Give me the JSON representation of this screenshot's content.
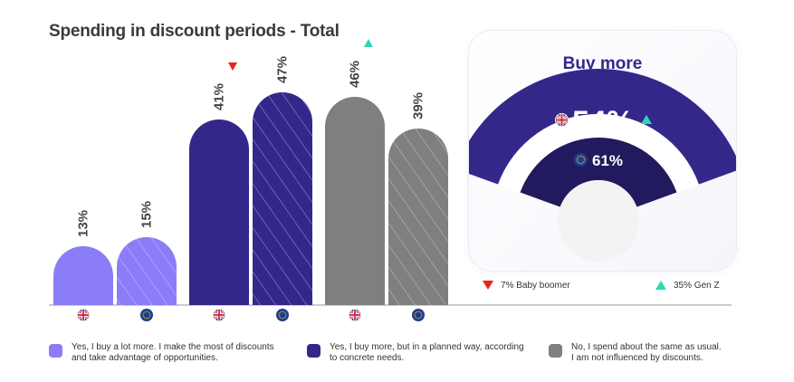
{
  "chart_data": {
    "type": "bar",
    "title": "Spending in discount periods - Total",
    "categories": [
      "Yes, I buy a lot more. I make the most of discounts and take advantage of opportunities.",
      "Yes, I buy more, but in a planned way, according to concrete needs.",
      "No, I spend about the same as usual. I am not influenced by discounts."
    ],
    "series": [
      {
        "name": "UK",
        "flag": "uk-flag-icon",
        "values": [
          13,
          41,
          46
        ]
      },
      {
        "name": "EU",
        "flag": "eu-flag-icon",
        "values": [
          15,
          47,
          39
        ]
      }
    ],
    "labels": [
      "13%",
      "15%",
      "41%",
      "47%",
      "46%",
      "39%"
    ],
    "trend_markers": [
      {
        "bar": 2,
        "direction": "down"
      },
      {
        "bar": 4,
        "direction": "up"
      }
    ],
    "ylim": [
      0,
      50
    ],
    "colors": [
      "#8b7cf7",
      "#33288a",
      "#7f7f7f"
    ],
    "legend": [
      {
        "color": "#8b7cf7",
        "line1": "Yes, I buy a lot more. I make the most of discounts",
        "line2": "and take advantage of opportunities."
      },
      {
        "color": "#33288a",
        "line1": "Yes, I buy more, but in a planned way, according",
        "line2": "to concrete needs."
      },
      {
        "color": "#7f7f7f",
        "line1": "No, I spend about the same as usual.",
        "line2": "I am not influenced by discounts."
      }
    ]
  },
  "card": {
    "title": "Buy more",
    "uk_value": "54%",
    "eu_value": "61%",
    "uk_fraction": 0.54,
    "eu_fraction": 0.61,
    "foot_down": "7% Baby boomer",
    "foot_up": "35% Gen Z"
  },
  "colors": {
    "up": "#2fd6b5",
    "down": "#e8211c",
    "track": "#ebebeb",
    "outer_arc": "#33288a",
    "inner_arc": "#221a5e"
  }
}
